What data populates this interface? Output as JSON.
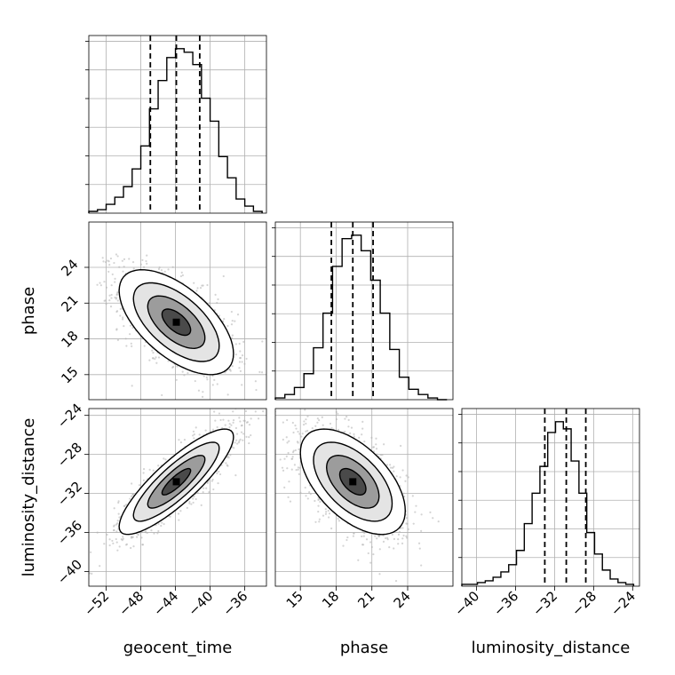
{
  "chart_data": {
    "type": "corner",
    "parameters": [
      "geocent_time",
      "phase",
      "luminosity_distance"
    ],
    "axis_labels": {
      "geocent_time": "geocent_time",
      "phase": "phase",
      "luminosity_distance": "luminosity_distance"
    },
    "ranges": {
      "geocent_time": [
        -54.0,
        -33.5
      ],
      "phase": [
        12.9,
        27.8
      ],
      "luminosity_distance": [
        -41.5,
        -23.3
      ]
    },
    "ticks": {
      "geocent_time": [
        -52,
        -48,
        -44,
        -40,
        -36
      ],
      "phase": [
        15,
        18,
        21,
        24
      ],
      "luminosity_distance": [
        -40,
        -36,
        -32,
        -28,
        -24
      ]
    },
    "tick_labels": {
      "geocent_time": [
        "−52",
        "−48",
        "−44",
        "−40",
        "−36"
      ],
      "phase": [
        "15",
        "18",
        "21",
        "24"
      ],
      "luminosity_distance": [
        "−40",
        "−36",
        "−32",
        "−28",
        "−24"
      ]
    },
    "quantiles": {
      "geocent_time": [
        -46.9,
        -43.9,
        -41.2
      ],
      "phase": [
        17.6,
        19.4,
        21.1
      ],
      "luminosity_distance": [
        -33.0,
        -30.8,
        -28.8
      ]
    },
    "histograms": {
      "geocent_time": {
        "bin_edges": [
          -54.0,
          -53.0,
          -52.0,
          -51.0,
          -50.0,
          -49.0,
          -48.0,
          -47.0,
          -46.0,
          -45.0,
          -44.0,
          -43.0,
          -42.0,
          -41.0,
          -40.0,
          -39.0,
          -38.0,
          -37.0,
          -36.0,
          -35.0,
          -34.0
        ],
        "counts": [
          0.01,
          0.02,
          0.05,
          0.09,
          0.15,
          0.25,
          0.38,
          0.59,
          0.75,
          0.88,
          0.93,
          0.91,
          0.84,
          0.65,
          0.52,
          0.32,
          0.2,
          0.08,
          0.04,
          0.01
        ]
      },
      "phase": {
        "bin_edges": [
          12.9,
          13.7,
          14.5,
          15.3,
          16.1,
          16.9,
          17.7,
          18.5,
          19.3,
          20.1,
          20.9,
          21.7,
          22.5,
          23.3,
          24.1,
          24.9,
          25.7,
          26.5,
          27.3
        ],
        "counts": [
          0.01,
          0.03,
          0.07,
          0.15,
          0.3,
          0.5,
          0.77,
          0.93,
          0.95,
          0.86,
          0.69,
          0.5,
          0.29,
          0.13,
          0.06,
          0.03,
          0.01,
          0.0
        ]
      },
      "luminosity_distance": {
        "bin_edges": [
          -41.5,
          -40.7,
          -39.9,
          -39.1,
          -38.3,
          -37.5,
          -36.7,
          -35.9,
          -35.1,
          -34.3,
          -33.5,
          -32.7,
          -31.9,
          -31.1,
          -30.3,
          -29.5,
          -28.7,
          -27.9,
          -27.1,
          -26.3,
          -25.5,
          -24.7,
          -23.9
        ],
        "counts": [
          0.01,
          0.01,
          0.02,
          0.03,
          0.05,
          0.08,
          0.12,
          0.2,
          0.35,
          0.52,
          0.67,
          0.86,
          0.92,
          0.88,
          0.7,
          0.52,
          0.3,
          0.18,
          0.09,
          0.04,
          0.02,
          0.01
        ]
      }
    },
    "pairs": [
      {
        "x": "geocent_time",
        "y": "phase",
        "mean": [
          -43.9,
          19.4
        ],
        "sd": [
          3.3,
          2.2
        ],
        "corr": -0.6
      },
      {
        "x": "geocent_time",
        "y": "luminosity_distance",
        "mean": [
          -43.9,
          -30.8
        ],
        "sd": [
          3.3,
          2.7
        ],
        "corr": 0.85
      },
      {
        "x": "phase",
        "y": "luminosity_distance",
        "mean": [
          19.4,
          -30.8
        ],
        "sd": [
          2.2,
          2.7
        ],
        "corr": -0.55
      }
    ],
    "contour_levels_sigma": [
      0.5,
      1.0,
      1.5,
      2.0
    ],
    "grid": true,
    "colors": {
      "hist": "#000000",
      "samples": "#b0b0b0",
      "contour": "#000000",
      "grid": "#b0b0b0",
      "frame": "#000000"
    }
  }
}
